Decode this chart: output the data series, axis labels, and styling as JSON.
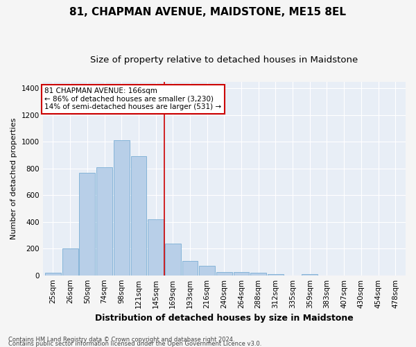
{
  "title": "81, CHAPMAN AVENUE, MAIDSTONE, ME15 8EL",
  "subtitle": "Size of property relative to detached houses in Maidstone",
  "xlabel": "Distribution of detached houses by size in Maidstone",
  "ylabel": "Number of detached properties",
  "bar_labels": [
    "25sqm",
    "26sqm",
    "50sqm",
    "74sqm",
    "98sqm",
    "121sqm",
    "145sqm",
    "169sqm",
    "193sqm",
    "216sqm",
    "240sqm",
    "264sqm",
    "288sqm",
    "312sqm",
    "335sqm",
    "359sqm",
    "383sqm",
    "407sqm",
    "430sqm",
    "454sqm",
    "478sqm"
  ],
  "bar_values": [
    20,
    200,
    770,
    810,
    1010,
    890,
    420,
    235,
    110,
    70,
    25,
    25,
    20,
    10,
    0,
    10,
    0,
    0,
    0,
    0,
    0
  ],
  "bar_color": "#b8cfe8",
  "bar_edge_color": "#7aadd4",
  "background_color": "#e8eef6",
  "grid_color": "#ffffff",
  "vline_color": "#cc0000",
  "ylim": [
    0,
    1450
  ],
  "yticks": [
    0,
    200,
    400,
    600,
    800,
    1000,
    1200,
    1400
  ],
  "annotation_text": "81 CHAPMAN AVENUE: 166sqm\n← 86% of detached houses are smaller (3,230)\n14% of semi-detached houses are larger (531) →",
  "annotation_box_color": "#ffffff",
  "annotation_border_color": "#cc0000",
  "footer_line1": "Contains HM Land Registry data © Crown copyright and database right 2024.",
  "footer_line2": "Contains public sector information licensed under the Open Government Licence v3.0.",
  "title_fontsize": 11,
  "subtitle_fontsize": 9.5,
  "xlabel_fontsize": 9,
  "ylabel_fontsize": 8,
  "tick_fontsize": 7.5,
  "footer_fontsize": 6
}
